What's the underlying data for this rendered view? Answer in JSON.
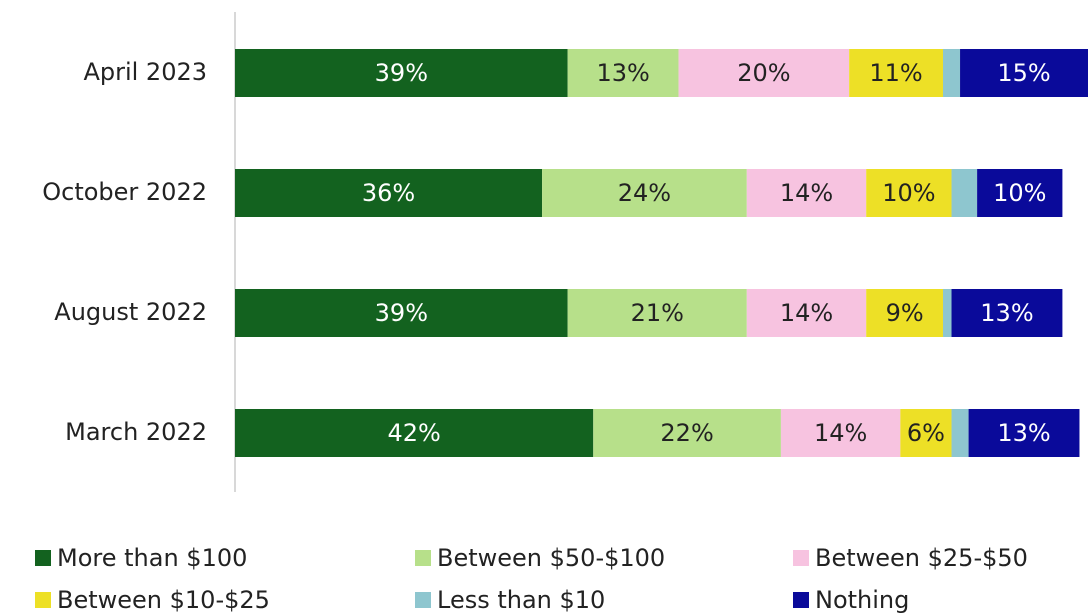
{
  "chart_data": {
    "type": "stacked_hbar",
    "categories": [
      "April 2023",
      "October 2022",
      "August 2022",
      "March 2022"
    ],
    "xlim": [
      0,
      100
    ],
    "series": [
      {
        "name": "More than $100",
        "color": "#13621f",
        "label_color": "#ffffff",
        "values": [
          39,
          36,
          39,
          42
        ],
        "value_labels": [
          "39%",
          "36%",
          "39%",
          "42%"
        ]
      },
      {
        "name": "Between $50-$100",
        "color": "#b7e08a",
        "label_color": "#222222",
        "values": [
          13,
          24,
          21,
          22
        ],
        "value_labels": [
          "13%",
          "24%",
          "21%",
          "22%"
        ]
      },
      {
        "name": "Between $25-$50",
        "color": "#f7c3e0",
        "label_color": "#222222",
        "values": [
          20,
          14,
          14,
          14
        ],
        "value_labels": [
          "20%",
          "14%",
          "14%",
          "14%"
        ]
      },
      {
        "name": "Between $10-$25",
        "color": "#ede026",
        "label_color": "#222222",
        "values": [
          11,
          10,
          9,
          6
        ],
        "value_labels": [
          "11%",
          "10%",
          "9%",
          "6%"
        ]
      },
      {
        "name": "Less than $10",
        "color": "#8ec6cf",
        "label_color": "#222222",
        "values": [
          2,
          3,
          1,
          2
        ],
        "value_labels": [
          null,
          null,
          null,
          null
        ]
      },
      {
        "name": "Nothing",
        "color": "#0a0a9a",
        "label_color": "#ffffff",
        "values": [
          15,
          10,
          13,
          13
        ],
        "value_labels": [
          "15%",
          "10%",
          "13%",
          "13%"
        ]
      }
    ],
    "legend": "bottom"
  }
}
